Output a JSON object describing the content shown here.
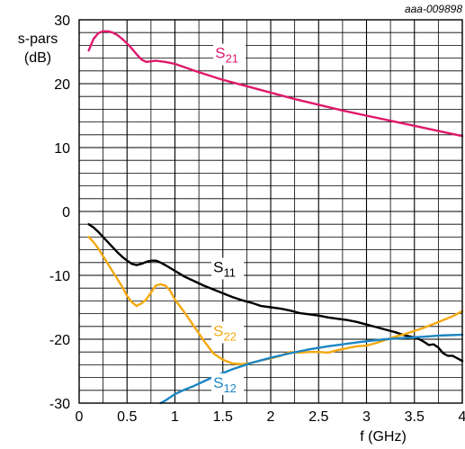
{
  "chart_data": {
    "type": "line",
    "title": "",
    "doc_id": "aaa-009898",
    "ylabel": [
      "s-pars",
      "(dB)"
    ],
    "xlabel": "f (GHz)",
    "xlim": [
      0,
      4
    ],
    "ylim": [
      -30,
      30
    ],
    "x_ticks": [
      "0",
      "0.5",
      "1",
      "1.5",
      "2",
      "2.5",
      "3",
      "3.5",
      "4"
    ],
    "y_ticks": [
      "30",
      "20",
      "10",
      "0",
      "-10",
      "-20",
      "-30"
    ],
    "x_tick_values": [
      0,
      0.5,
      1,
      1.5,
      2,
      2.5,
      3,
      3.5,
      4
    ],
    "y_tick_values": [
      30,
      20,
      10,
      0,
      -10,
      -20,
      -30
    ],
    "grid": true,
    "x_grid_step": 0.25,
    "y_grid_step": 2,
    "series": [
      {
        "name": "S21",
        "label_main": "S",
        "label_sub": "21",
        "color": "#e0186c",
        "label_at": [
          1.42,
          24.0
        ],
        "points": [
          [
            0.1,
            25.2
          ],
          [
            0.15,
            27.0
          ],
          [
            0.2,
            27.9
          ],
          [
            0.25,
            28.2
          ],
          [
            0.3,
            28.2
          ],
          [
            0.35,
            28.0
          ],
          [
            0.4,
            27.6
          ],
          [
            0.45,
            27.0
          ],
          [
            0.5,
            26.3
          ],
          [
            0.55,
            25.5
          ],
          [
            0.6,
            24.6
          ],
          [
            0.65,
            23.8
          ],
          [
            0.7,
            23.4
          ],
          [
            0.75,
            23.5
          ],
          [
            0.8,
            23.6
          ],
          [
            0.85,
            23.5
          ],
          [
            0.9,
            23.4
          ],
          [
            1.0,
            23.1
          ],
          [
            1.25,
            21.8
          ],
          [
            1.5,
            20.6
          ],
          [
            1.75,
            19.6
          ],
          [
            2.0,
            18.6
          ],
          [
            2.25,
            17.6
          ],
          [
            2.5,
            16.7
          ],
          [
            2.75,
            15.8
          ],
          [
            3.0,
            15.0
          ],
          [
            3.25,
            14.2
          ],
          [
            3.5,
            13.4
          ],
          [
            3.75,
            12.6
          ],
          [
            4.0,
            11.8
          ]
        ]
      },
      {
        "name": "S11",
        "label_main": "S",
        "label_sub": "11",
        "color": "#000000",
        "label_at": [
          1.4,
          -9.5
        ],
        "points": [
          [
            0.1,
            -2.0
          ],
          [
            0.15,
            -2.5
          ],
          [
            0.2,
            -3.2
          ],
          [
            0.25,
            -4.0
          ],
          [
            0.3,
            -4.8
          ],
          [
            0.35,
            -5.6
          ],
          [
            0.4,
            -6.4
          ],
          [
            0.45,
            -7.1
          ],
          [
            0.5,
            -7.7
          ],
          [
            0.55,
            -8.2
          ],
          [
            0.6,
            -8.4
          ],
          [
            0.65,
            -8.2
          ],
          [
            0.7,
            -7.9
          ],
          [
            0.75,
            -7.7
          ],
          [
            0.8,
            -7.7
          ],
          [
            0.85,
            -8.0
          ],
          [
            0.9,
            -8.4
          ],
          [
            1.0,
            -9.3
          ],
          [
            1.1,
            -10.2
          ],
          [
            1.2,
            -10.9
          ],
          [
            1.3,
            -11.6
          ],
          [
            1.4,
            -12.2
          ],
          [
            1.5,
            -12.8
          ],
          [
            1.6,
            -13.4
          ],
          [
            1.7,
            -13.9
          ],
          [
            1.8,
            -14.3
          ],
          [
            1.9,
            -14.8
          ],
          [
            2.0,
            -15.0
          ],
          [
            2.1,
            -15.2
          ],
          [
            2.2,
            -15.5
          ],
          [
            2.3,
            -15.9
          ],
          [
            2.4,
            -16.1
          ],
          [
            2.5,
            -16.3
          ],
          [
            2.6,
            -16.6
          ],
          [
            2.7,
            -16.8
          ],
          [
            2.8,
            -17.0
          ],
          [
            2.9,
            -17.3
          ],
          [
            3.0,
            -17.7
          ],
          [
            3.1,
            -18.1
          ],
          [
            3.2,
            -18.5
          ],
          [
            3.3,
            -18.9
          ],
          [
            3.4,
            -19.4
          ],
          [
            3.5,
            -19.7
          ],
          [
            3.55,
            -20.0
          ],
          [
            3.6,
            -20.4
          ],
          [
            3.65,
            -20.9
          ],
          [
            3.7,
            -20.8
          ],
          [
            3.75,
            -21.3
          ],
          [
            3.8,
            -22.2
          ],
          [
            3.85,
            -22.6
          ],
          [
            3.9,
            -22.6
          ],
          [
            3.95,
            -23.0
          ],
          [
            4.0,
            -23.4
          ]
        ]
      },
      {
        "name": "S22",
        "label_main": "S",
        "label_sub": "22",
        "color": "#f5a80f",
        "label_at": [
          1.4,
          -19.5
        ],
        "points": [
          [
            0.1,
            -4.0
          ],
          [
            0.15,
            -4.8
          ],
          [
            0.2,
            -5.8
          ],
          [
            0.25,
            -7.0
          ],
          [
            0.3,
            -8.2
          ],
          [
            0.35,
            -9.4
          ],
          [
            0.4,
            -10.6
          ],
          [
            0.45,
            -11.8
          ],
          [
            0.5,
            -13.2
          ],
          [
            0.55,
            -14.2
          ],
          [
            0.6,
            -14.8
          ],
          [
            0.65,
            -14.4
          ],
          [
            0.7,
            -13.8
          ],
          [
            0.75,
            -12.7
          ],
          [
            0.8,
            -11.6
          ],
          [
            0.85,
            -11.4
          ],
          [
            0.9,
            -11.6
          ],
          [
            0.95,
            -12.4
          ],
          [
            1.0,
            -13.8
          ],
          [
            1.1,
            -15.8
          ],
          [
            1.2,
            -18.0
          ],
          [
            1.3,
            -20.2
          ],
          [
            1.4,
            -22.2
          ],
          [
            1.5,
            -23.2
          ],
          [
            1.6,
            -23.8
          ],
          [
            1.7,
            -23.9
          ],
          [
            1.8,
            -23.7
          ],
          [
            1.9,
            -23.3
          ],
          [
            2.0,
            -23.0
          ],
          [
            2.1,
            -22.6
          ],
          [
            2.2,
            -22.0
          ],
          [
            2.3,
            -22.1
          ],
          [
            2.4,
            -22.0
          ],
          [
            2.5,
            -22.0
          ],
          [
            2.6,
            -22.1
          ],
          [
            2.7,
            -21.7
          ],
          [
            2.8,
            -21.4
          ],
          [
            2.9,
            -21.1
          ],
          [
            3.0,
            -21.0
          ],
          [
            3.1,
            -20.6
          ],
          [
            3.2,
            -20.1
          ],
          [
            3.3,
            -19.6
          ],
          [
            3.4,
            -19.2
          ],
          [
            3.5,
            -18.7
          ],
          [
            3.6,
            -18.2
          ],
          [
            3.7,
            -17.6
          ],
          [
            3.8,
            -17.0
          ],
          [
            3.9,
            -16.4
          ],
          [
            4.0,
            -15.6
          ]
        ]
      },
      {
        "name": "S12",
        "label_main": "S",
        "label_sub": "12",
        "color": "#1b85c3",
        "label_at": [
          1.4,
          -27.6
        ],
        "points": [
          [
            0.85,
            -30.0
          ],
          [
            0.9,
            -29.6
          ],
          [
            1.0,
            -28.6
          ],
          [
            1.1,
            -27.9
          ],
          [
            1.2,
            -27.3
          ],
          [
            1.3,
            -26.6
          ],
          [
            1.4,
            -25.9
          ],
          [
            1.5,
            -25.3
          ],
          [
            1.6,
            -24.7
          ],
          [
            1.7,
            -24.2
          ],
          [
            1.8,
            -23.7
          ],
          [
            1.9,
            -23.3
          ],
          [
            2.0,
            -22.9
          ],
          [
            2.2,
            -22.2
          ],
          [
            2.4,
            -21.6
          ],
          [
            2.6,
            -21.1
          ],
          [
            2.8,
            -20.7
          ],
          [
            3.0,
            -20.3
          ],
          [
            3.2,
            -20.0
          ],
          [
            3.4,
            -19.8
          ],
          [
            3.6,
            -19.6
          ],
          [
            3.8,
            -19.4
          ],
          [
            4.0,
            -19.3
          ]
        ]
      }
    ]
  }
}
